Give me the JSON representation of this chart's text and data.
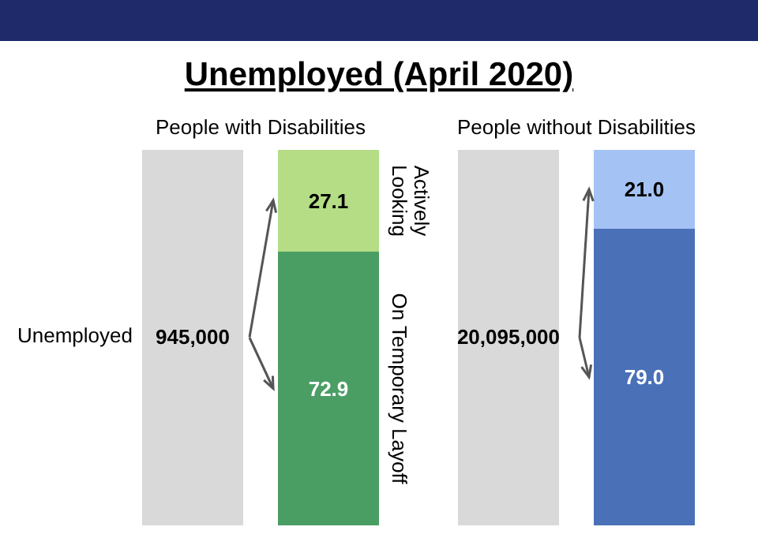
{
  "chart_data": [
    {
      "type": "bar",
      "title": "Unemployed (April 2020)",
      "subtitle": "People with Disabilities",
      "ylabel": "Unemployed",
      "annotations": [
        "945,000"
      ],
      "categories": [
        null
      ],
      "stacked": true,
      "tick_labels": false,
      "ylim": [
        0,
        100
      ],
      "series": [
        {
          "name": "On Temporary Layoff",
          "color": "#4a9e64",
          "values": [
            72.9
          ],
          "value_labels": [
            "72.9"
          ]
        },
        {
          "name": "Actively Looking",
          "color": "#b4dd86",
          "values": [
            27.1
          ],
          "value_labels": [
            "27.1"
          ]
        }
      ]
    },
    {
      "type": "bar",
      "subtitle": "People without Disabilities",
      "annotations": [
        "20,095,000"
      ],
      "categories": [
        null
      ],
      "stacked": true,
      "tick_labels": false,
      "ylim": [
        0,
        100
      ],
      "series": [
        {
          "color": "#4a70b7",
          "values": [
            79.0
          ],
          "value_labels": [
            "79.0"
          ]
        },
        {
          "color": "#a4c2f4",
          "values": [
            21.0
          ],
          "value_labels": [
            "21.0"
          ]
        }
      ]
    }
  ]
}
